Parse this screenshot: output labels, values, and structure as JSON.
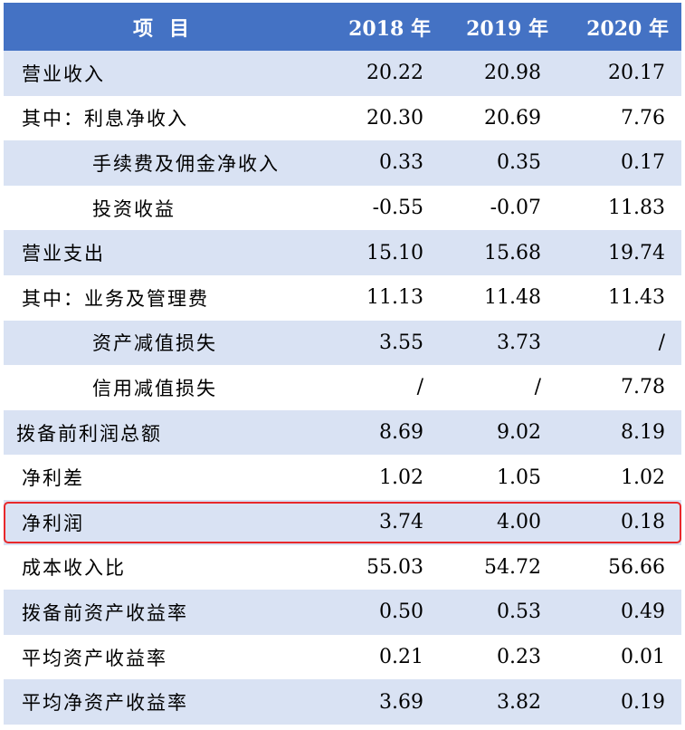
{
  "header": {
    "item": "项目",
    "years": [
      "2018 年",
      "2019 年",
      "2020 年"
    ]
  },
  "rows": [
    {
      "label": "营业收入",
      "values": [
        "20.22",
        "20.98",
        "20.17"
      ]
    },
    {
      "label": "其中：利息净收入",
      "values": [
        "20.30",
        "20.69",
        "7.76"
      ]
    },
    {
      "label": "手续费及佣金净收入",
      "values": [
        "0.33",
        "0.35",
        "0.17"
      ]
    },
    {
      "label": "投资收益",
      "values": [
        "-0.55",
        "-0.07",
        "11.83"
      ]
    },
    {
      "label": "营业支出",
      "values": [
        "15.10",
        "15.68",
        "19.74"
      ]
    },
    {
      "label": "其中：业务及管理费",
      "values": [
        "11.13",
        "11.48",
        "11.43"
      ]
    },
    {
      "label": "资产减值损失",
      "values": [
        "3.55",
        "3.73",
        "/"
      ]
    },
    {
      "label": "信用减值损失",
      "values": [
        "/",
        "/",
        "7.78"
      ]
    },
    {
      "label": "拨备前利润总额",
      "values": [
        "8.69",
        "9.02",
        "8.19"
      ]
    },
    {
      "label": "净利差",
      "values": [
        "1.02",
        "1.05",
        "1.02"
      ]
    },
    {
      "label": "净利润",
      "values": [
        "3.74",
        "4.00",
        "0.18"
      ]
    },
    {
      "label": "成本收入比",
      "values": [
        "55.03",
        "54.72",
        "56.66"
      ]
    },
    {
      "label": "拨备前资产收益率",
      "values": [
        "0.50",
        "0.53",
        "0.49"
      ]
    },
    {
      "label": "平均资产收益率",
      "values": [
        "0.21",
        "0.23",
        "0.01"
      ]
    },
    {
      "label": "平均净资产收益率",
      "values": [
        "3.69",
        "3.82",
        "0.19"
      ]
    }
  ],
  "colors": {
    "header_bg": "#4472c4",
    "shaded_row": "#d9e2f3",
    "highlight_border": "#e8282b"
  }
}
